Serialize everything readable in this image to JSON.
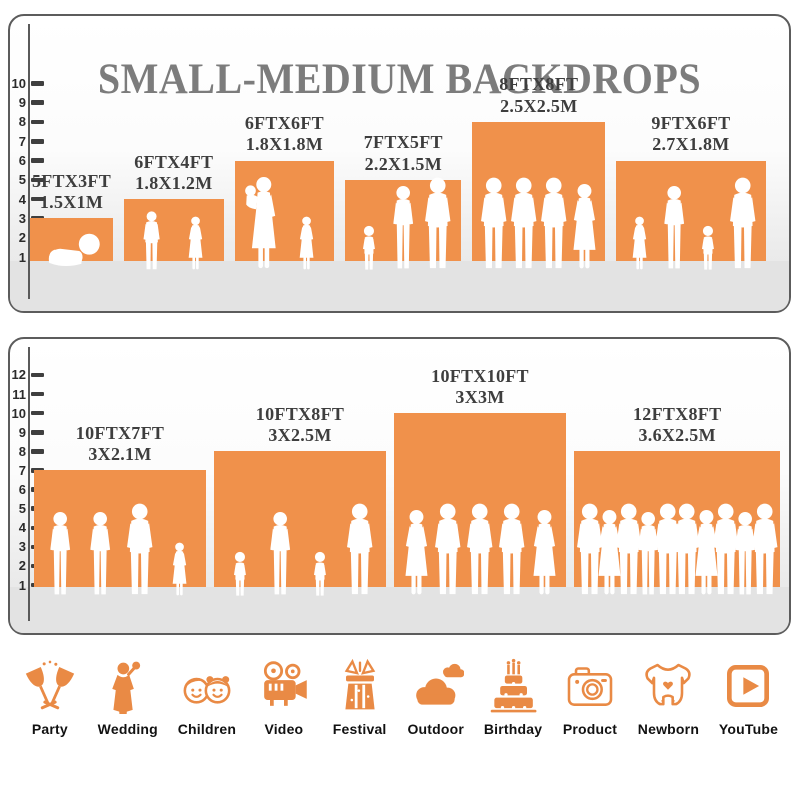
{
  "title": "SMALL-MEDIUM BACKDROPS",
  "colors": {
    "bar_orange": "#F0914B",
    "icon_orange": "#E98A45",
    "title_gray": "#7C7C7C",
    "label_gray": "#3E3E3E",
    "panel_border": "#5C5C5C",
    "floor_gray": "#E3E3E3",
    "tick_dark": "#3F3F3F",
    "silhouette_white": "#FFFFFF"
  },
  "chart_data": [
    {
      "type": "bar",
      "panel": "small-backdrops",
      "axis_unit": "feet",
      "axis_ticks": [
        1,
        2,
        3,
        4,
        5,
        6,
        7,
        8,
        9,
        10
      ],
      "bars": [
        {
          "size_ft": "5FTX3FT",
          "size_m": "1.5X1M",
          "width_ft": 5,
          "height_ft": 3,
          "people": [
            "baby"
          ]
        },
        {
          "size_ft": "6FTX4FT",
          "size_m": "1.8X1.2M",
          "width_ft": 6,
          "height_ft": 4,
          "people": [
            "boy",
            "girl"
          ]
        },
        {
          "size_ft": "6FTX6FT",
          "size_m": "1.8X1.8M",
          "width_ft": 6,
          "height_ft": 6,
          "people": [
            "woman_baby",
            "girl"
          ]
        },
        {
          "size_ft": "7FTX5FT",
          "size_m": "2.2X1.5M",
          "width_ft": 7,
          "height_ft": 5,
          "people": [
            "toddler",
            "woman",
            "man"
          ]
        },
        {
          "size_ft": "8FTX8FT",
          "size_m": "2.5X2.5M",
          "width_ft": 8,
          "height_ft": 8,
          "people": [
            "man",
            "man",
            "man",
            "woman_dress"
          ]
        },
        {
          "size_ft": "9FTX6FT",
          "size_m": "2.7X1.8M",
          "width_ft": 9,
          "height_ft": 6,
          "people": [
            "girl",
            "woman",
            "toddler",
            "man"
          ]
        }
      ]
    },
    {
      "type": "bar",
      "panel": "medium-backdrops",
      "axis_unit": "feet",
      "axis_ticks": [
        1,
        2,
        3,
        4,
        5,
        6,
        7,
        8,
        9,
        10,
        11,
        12
      ],
      "bars": [
        {
          "size_ft": "10FTX7FT",
          "size_m": "3X2.1M",
          "width_ft": 10,
          "height_ft": 7,
          "people": [
            "woman",
            "woman",
            "man",
            "girl"
          ]
        },
        {
          "size_ft": "10FTX8FT",
          "size_m": "3X2.5M",
          "width_ft": 10,
          "height_ft": 8,
          "people": [
            "toddler",
            "woman",
            "toddler",
            "man"
          ]
        },
        {
          "size_ft": "10FTX10FT",
          "size_m": "3X3M",
          "width_ft": 10,
          "height_ft": 10,
          "people": [
            "woman_dress",
            "man",
            "man",
            "man",
            "woman_dress"
          ]
        },
        {
          "size_ft": "12FTX8FT",
          "size_m": "3.6X2.5M",
          "width_ft": 12,
          "height_ft": 8,
          "people": [
            "man",
            "woman_dress",
            "man",
            "woman",
            "man",
            "man",
            "woman_dress",
            "man",
            "woman",
            "man"
          ]
        }
      ]
    }
  ],
  "categories": [
    {
      "label": "Party",
      "icon": "party-icon"
    },
    {
      "label": "Wedding",
      "icon": "wedding-icon"
    },
    {
      "label": "Children",
      "icon": "children-icon"
    },
    {
      "label": "Video",
      "icon": "video-icon"
    },
    {
      "label": "Festival",
      "icon": "festival-icon"
    },
    {
      "label": "Outdoor",
      "icon": "outdoor-icon"
    },
    {
      "label": "Birthday",
      "icon": "birthday-icon"
    },
    {
      "label": "Product",
      "icon": "product-icon"
    },
    {
      "label": "Newborn",
      "icon": "newborn-icon"
    },
    {
      "label": "YouTube",
      "icon": "youtube-icon"
    }
  ]
}
